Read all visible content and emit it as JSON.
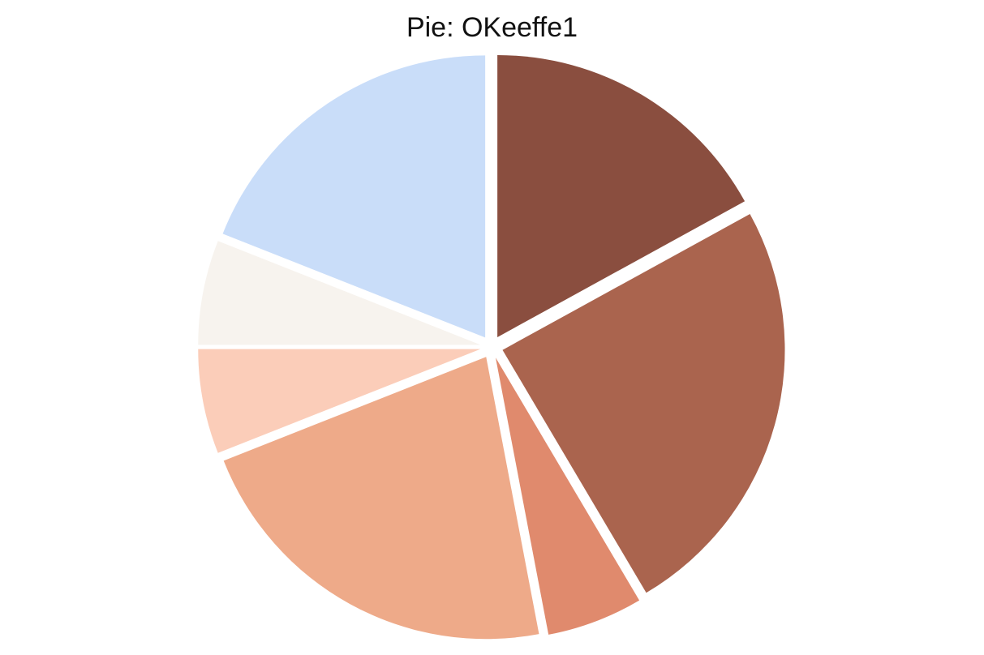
{
  "chart_data": {
    "type": "pie",
    "title": "Pie: OKeeffe1",
    "legend": "none",
    "slices": [
      {
        "value": 17.0,
        "color": "#8a4e3f"
      },
      {
        "value": 24.5,
        "color": "#aa644e"
      },
      {
        "value": 5.5,
        "color": "#e08a6d"
      },
      {
        "value": 22.0,
        "color": "#eeaa89"
      },
      {
        "value": 6.0,
        "color": "#fbcdb9"
      },
      {
        "value": 6.0,
        "color": "#f7f3ee"
      },
      {
        "value": 19.0,
        "color": "#c9ddf9"
      }
    ]
  }
}
